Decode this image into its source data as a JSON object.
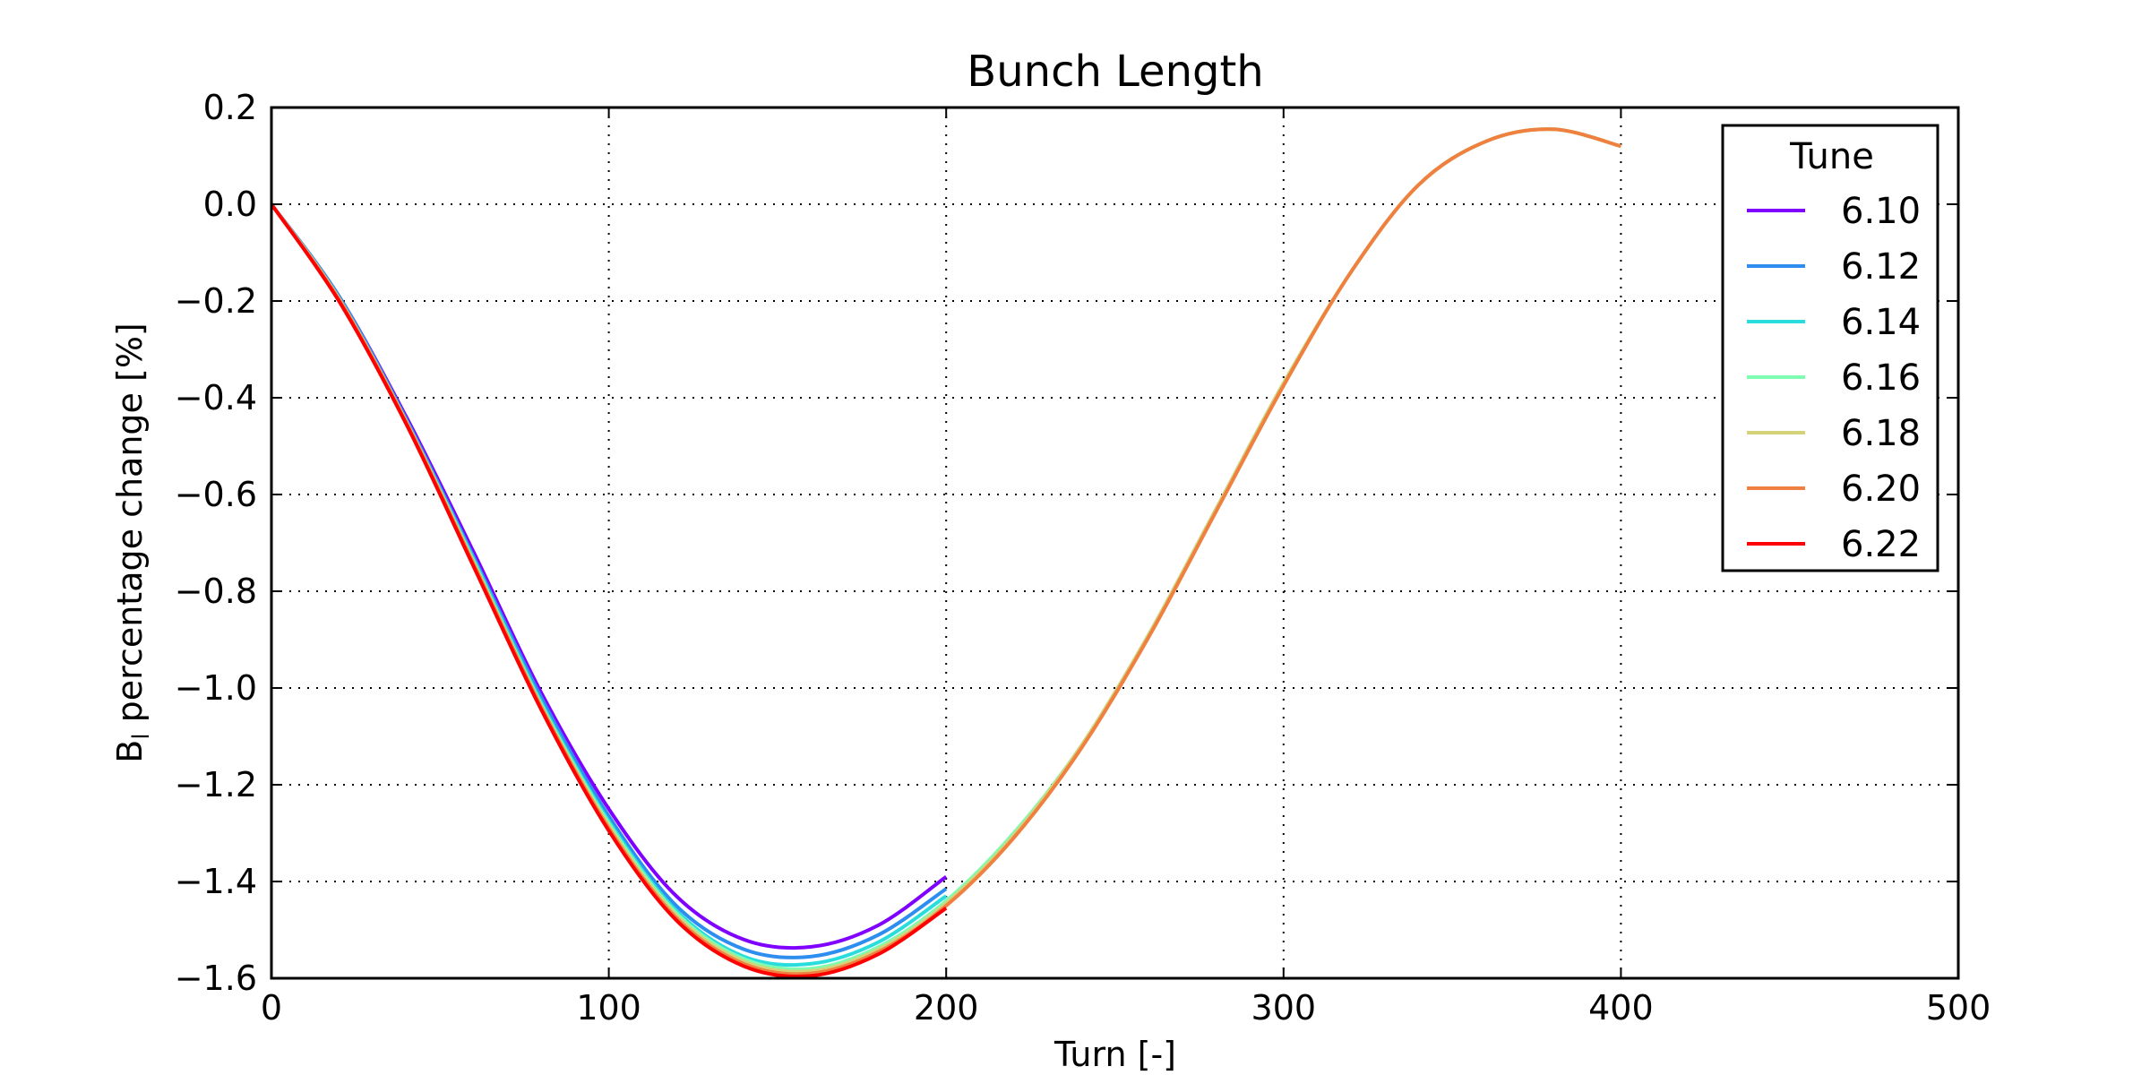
{
  "chart_data": {
    "type": "line",
    "title": "Bunch Length",
    "xlabel": "Turn [-]",
    "ylabel": "B",
    "ylabel_sub": "l",
    "ylabel_rest": " percentage change [%]",
    "xlim": [
      0,
      500
    ],
    "ylim": [
      -1.6,
      0.2
    ],
    "xticks": [
      0,
      100,
      200,
      300,
      400,
      500
    ],
    "xtick_labels": [
      "0",
      "100",
      "200",
      "300",
      "400",
      "500"
    ],
    "yticks": [
      0.2,
      0.0,
      -0.2,
      -0.4,
      -0.6,
      -0.8,
      -1.0,
      -1.2,
      -1.4,
      -1.6
    ],
    "ytick_labels": [
      "0.2",
      "0.0",
      "−0.2",
      "−0.4",
      "−0.6",
      "−0.8",
      "−1.0",
      "−1.2",
      "−1.4",
      "−1.6"
    ],
    "grid": true,
    "legend": {
      "title": "Tune",
      "position": "top-right"
    },
    "series": [
      {
        "name": "6.10",
        "color": "#8000ff",
        "x": [
          0,
          20,
          40,
          60,
          80,
          100,
          120,
          140,
          160,
          180,
          200
        ],
        "y": [
          0.0,
          -0.19,
          -0.44,
          -0.72,
          -1.01,
          -1.25,
          -1.43,
          -1.52,
          -1.535,
          -1.49,
          -1.39
        ]
      },
      {
        "name": "6.12",
        "color": "#2d8ef0",
        "x": [
          0,
          20,
          40,
          60,
          80,
          100,
          120,
          140,
          160,
          180,
          200
        ],
        "y": [
          0.0,
          -0.19,
          -0.445,
          -0.73,
          -1.02,
          -1.265,
          -1.45,
          -1.54,
          -1.555,
          -1.51,
          -1.415
        ]
      },
      {
        "name": "6.14",
        "color": "#2adddd",
        "x": [
          0,
          20,
          40,
          60,
          80,
          100,
          120,
          140,
          160,
          180,
          200
        ],
        "y": [
          0.0,
          -0.195,
          -0.45,
          -0.735,
          -1.03,
          -1.275,
          -1.46,
          -1.555,
          -1.57,
          -1.525,
          -1.43
        ]
      },
      {
        "name": "6.16",
        "color": "#7ffcb0",
        "x": [
          0,
          20,
          40,
          60,
          80,
          100,
          120,
          140,
          160,
          180,
          200,
          220,
          240,
          260,
          280,
          300,
          320,
          340,
          360,
          380,
          400
        ],
        "y": [
          0.0,
          -0.195,
          -0.45,
          -0.74,
          -1.035,
          -1.28,
          -1.465,
          -1.56,
          -1.58,
          -1.535,
          -1.44,
          -1.3,
          -1.12,
          -0.89,
          -0.63,
          -0.37,
          -0.14,
          0.04,
          0.13,
          0.155,
          0.12
        ]
      },
      {
        "name": "6.18",
        "color": "#d4d37a",
        "x": [
          0,
          20,
          40,
          60,
          80,
          100,
          120,
          140,
          160,
          180,
          200,
          220,
          240,
          260,
          280,
          300,
          320,
          340,
          360,
          380,
          400
        ],
        "y": [
          0.0,
          -0.195,
          -0.45,
          -0.742,
          -1.038,
          -1.285,
          -1.47,
          -1.565,
          -1.585,
          -1.54,
          -1.445,
          -1.305,
          -1.12,
          -0.89,
          -0.63,
          -0.37,
          -0.14,
          0.04,
          0.13,
          0.155,
          0.12
        ]
      },
      {
        "name": "6.20",
        "color": "#f08040",
        "x": [
          0,
          20,
          40,
          60,
          80,
          100,
          120,
          140,
          160,
          180,
          200,
          220,
          240,
          260,
          280,
          300,
          320,
          340,
          360,
          380,
          400
        ],
        "y": [
          0.0,
          -0.197,
          -0.452,
          -0.745,
          -1.04,
          -1.29,
          -1.475,
          -1.57,
          -1.59,
          -1.545,
          -1.45,
          -1.31,
          -1.125,
          -0.895,
          -0.635,
          -0.375,
          -0.14,
          0.04,
          0.13,
          0.155,
          0.12
        ]
      },
      {
        "name": "6.22",
        "color": "#ff0000",
        "x": [
          0,
          20,
          40,
          60,
          80,
          100,
          120,
          140,
          160,
          180,
          200
        ],
        "y": [
          0.0,
          -0.2,
          -0.455,
          -0.75,
          -1.045,
          -1.295,
          -1.48,
          -1.575,
          -1.595,
          -1.55,
          -1.455
        ]
      }
    ]
  }
}
